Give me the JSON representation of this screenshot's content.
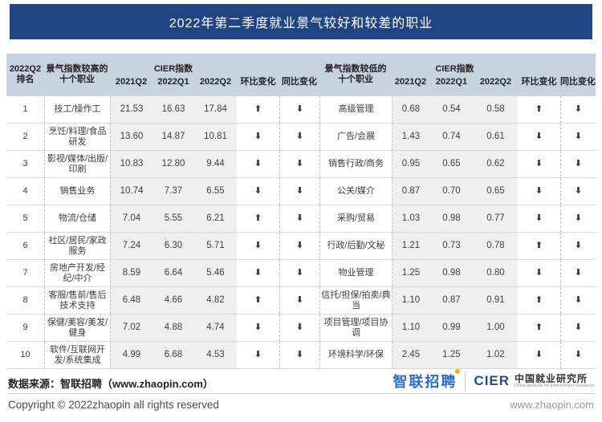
{
  "title": "2022年第二季度就业景气较好和较差的职业",
  "header": {
    "rank_l1": "2022Q2",
    "rank_l2": "排名",
    "occ_high": "景气指数较高的十个职业",
    "occ_low": "景气指数较低的十个职业",
    "cier_group": "CIER指数",
    "sub": [
      "2021Q2",
      "2022Q1",
      "2022Q2",
      "环比变化",
      "同比变化"
    ]
  },
  "icons": {
    "up": "⬆",
    "down": "⬇"
  },
  "colors": {
    "title_bg": "#1F4585",
    "header_bg": "#C7D3E1",
    "cier_shade": "#EFEFEF",
    "arrow_up": "#1C4E91",
    "arrow_down": "#F5B301",
    "logo_blue": "#2E6BD4",
    "cier_navy": "#1D4F91"
  },
  "left_rows": [
    {
      "rank": "1",
      "name": "技工/操作工",
      "q2_2021": "21.53",
      "q1_2022": "16.63",
      "q2_2022": "17.84",
      "qoq": "up",
      "yoy": "down"
    },
    {
      "rank": "2",
      "name": "烹饪/料理/食品研发",
      "q2_2021": "13.60",
      "q1_2022": "14.87",
      "q2_2022": "10.81",
      "qoq": "down",
      "yoy": "down"
    },
    {
      "rank": "3",
      "name": "影视/媒体/出版/印刷",
      "q2_2021": "10.83",
      "q1_2022": "12.80",
      "q2_2022": "9.44",
      "qoq": "down",
      "yoy": "down"
    },
    {
      "rank": "4",
      "name": "销售业务",
      "q2_2021": "10.74",
      "q1_2022": "7.37",
      "q2_2022": "6.55",
      "qoq": "down",
      "yoy": "down"
    },
    {
      "rank": "5",
      "name": "物流/仓储",
      "q2_2021": "7.04",
      "q1_2022": "5.55",
      "q2_2022": "6.21",
      "qoq": "up",
      "yoy": "down"
    },
    {
      "rank": "6",
      "name": "社区/居民/家政服务",
      "q2_2021": "7.24",
      "q1_2022": "6.30",
      "q2_2022": "5.71",
      "qoq": "down",
      "yoy": "down"
    },
    {
      "rank": "7",
      "name": "房地产开发/经纪/中介",
      "q2_2021": "8.59",
      "q1_2022": "6.64",
      "q2_2022": "5.46",
      "qoq": "down",
      "yoy": "down"
    },
    {
      "rank": "8",
      "name": "客服/售前/售后技术支持",
      "q2_2021": "6.48",
      "q1_2022": "4.66",
      "q2_2022": "4.82",
      "qoq": "up",
      "yoy": "down"
    },
    {
      "rank": "9",
      "name": "保健/美容/美发/健身",
      "q2_2021": "7.02",
      "q1_2022": "4.88",
      "q2_2022": "4.74",
      "qoq": "down",
      "yoy": "down"
    },
    {
      "rank": "10",
      "name": "软件/互联网开发/系统集成",
      "q2_2021": "4.99",
      "q1_2022": "6.68",
      "q2_2022": "4.53",
      "qoq": "down",
      "yoy": "down"
    }
  ],
  "right_rows": [
    {
      "name": "高级管理",
      "q2_2021": "0.68",
      "q1_2022": "0.54",
      "q2_2022": "0.58",
      "qoq": "up",
      "yoy": "down"
    },
    {
      "name": "广告/会展",
      "q2_2021": "1.43",
      "q1_2022": "0.74",
      "q2_2022": "0.61",
      "qoq": "down",
      "yoy": "down"
    },
    {
      "name": "销售行政/商务",
      "q2_2021": "0.95",
      "q1_2022": "0.65",
      "q2_2022": "0.62",
      "qoq": "down",
      "yoy": "down"
    },
    {
      "name": "公关/媒介",
      "q2_2021": "0.87",
      "q1_2022": "0.70",
      "q2_2022": "0.65",
      "qoq": "down",
      "yoy": "down"
    },
    {
      "name": "采购/贸易",
      "q2_2021": "1.03",
      "q1_2022": "0.98",
      "q2_2022": "0.77",
      "qoq": "down",
      "yoy": "down"
    },
    {
      "name": "行政/后勤/文秘",
      "q2_2021": "1.21",
      "q1_2022": "0.73",
      "q2_2022": "0.78",
      "qoq": "up",
      "yoy": "down"
    },
    {
      "name": "物业管理",
      "q2_2021": "1.25",
      "q1_2022": "0.98",
      "q2_2022": "0.80",
      "qoq": "down",
      "yoy": "down"
    },
    {
      "name": "信托/担保/拍卖/典当",
      "q2_2021": "1.10",
      "q1_2022": "0.87",
      "q2_2022": "0.91",
      "qoq": "up",
      "yoy": "down"
    },
    {
      "name": "项目管理/项目协调",
      "q2_2021": "1.10",
      "q1_2022": "0.99",
      "q2_2022": "1.00",
      "qoq": "up",
      "yoy": "down"
    },
    {
      "name": "环境科学/环保",
      "q2_2021": "2.45",
      "q1_2022": "1.25",
      "q2_2022": "1.02",
      "qoq": "down",
      "yoy": "down"
    }
  ],
  "footer": {
    "source_line": "数据来源：智联招聘（www.zhaopin.com）",
    "copyright": "Copyright © 2022zhaopin all rights reserved",
    "website": "www.zhaopin.com",
    "logo_zhaopin": "智联招聘",
    "logo_cier": "CIER",
    "logo_cier_cn": "中国就业研究所",
    "logo_cier_en": "China Institute for Employment Research"
  },
  "chart_data": {
    "type": "table",
    "title": "2022年第二季度就业景气较好和较差的职业",
    "tables": [
      {
        "name": "景气指数较高的十个职业",
        "columns": [
          "2022Q2排名",
          "职业",
          "CIER指数 2021Q2",
          "CIER指数 2022Q1",
          "CIER指数 2022Q2",
          "环比变化",
          "同比变化"
        ],
        "rows": [
          [
            1,
            "技工/操作工",
            21.53,
            16.63,
            17.84,
            "up",
            "down"
          ],
          [
            2,
            "烹饪/料理/食品研发",
            13.6,
            14.87,
            10.81,
            "down",
            "down"
          ],
          [
            3,
            "影视/媒体/出版/印刷",
            10.83,
            12.8,
            9.44,
            "down",
            "down"
          ],
          [
            4,
            "销售业务",
            10.74,
            7.37,
            6.55,
            "down",
            "down"
          ],
          [
            5,
            "物流/仓储",
            7.04,
            5.55,
            6.21,
            "up",
            "down"
          ],
          [
            6,
            "社区/居民/家政服务",
            7.24,
            6.3,
            5.71,
            "down",
            "down"
          ],
          [
            7,
            "房地产开发/经纪/中介",
            8.59,
            6.64,
            5.46,
            "down",
            "down"
          ],
          [
            8,
            "客服/售前/售后技术支持",
            6.48,
            4.66,
            4.82,
            "up",
            "down"
          ],
          [
            9,
            "保健/美容/美发/健身",
            7.02,
            4.88,
            4.74,
            "down",
            "down"
          ],
          [
            10,
            "软件/互联网开发/系统集成",
            4.99,
            6.68,
            4.53,
            "down",
            "down"
          ]
        ]
      },
      {
        "name": "景气指数较低的十个职业",
        "columns": [
          "2022Q2排名",
          "职业",
          "CIER指数 2021Q2",
          "CIER指数 2022Q1",
          "CIER指数 2022Q2",
          "环比变化",
          "同比变化"
        ],
        "rows": [
          [
            1,
            "高级管理",
            0.68,
            0.54,
            0.58,
            "up",
            "down"
          ],
          [
            2,
            "广告/会展",
            1.43,
            0.74,
            0.61,
            "down",
            "down"
          ],
          [
            3,
            "销售行政/商务",
            0.95,
            0.65,
            0.62,
            "down",
            "down"
          ],
          [
            4,
            "公关/媒介",
            0.87,
            0.7,
            0.65,
            "down",
            "down"
          ],
          [
            5,
            "采购/贸易",
            1.03,
            0.98,
            0.77,
            "down",
            "down"
          ],
          [
            6,
            "行政/后勤/文秘",
            1.21,
            0.73,
            0.78,
            "up",
            "down"
          ],
          [
            7,
            "物业管理",
            1.25,
            0.98,
            0.8,
            "down",
            "down"
          ],
          [
            8,
            "信托/担保/拍卖/典当",
            1.1,
            0.87,
            0.91,
            "up",
            "down"
          ],
          [
            9,
            "项目管理/项目协调",
            1.1,
            0.99,
            1.0,
            "up",
            "down"
          ],
          [
            10,
            "环境科学/环保",
            2.45,
            1.25,
            1.02,
            "down",
            "down"
          ]
        ]
      }
    ]
  }
}
